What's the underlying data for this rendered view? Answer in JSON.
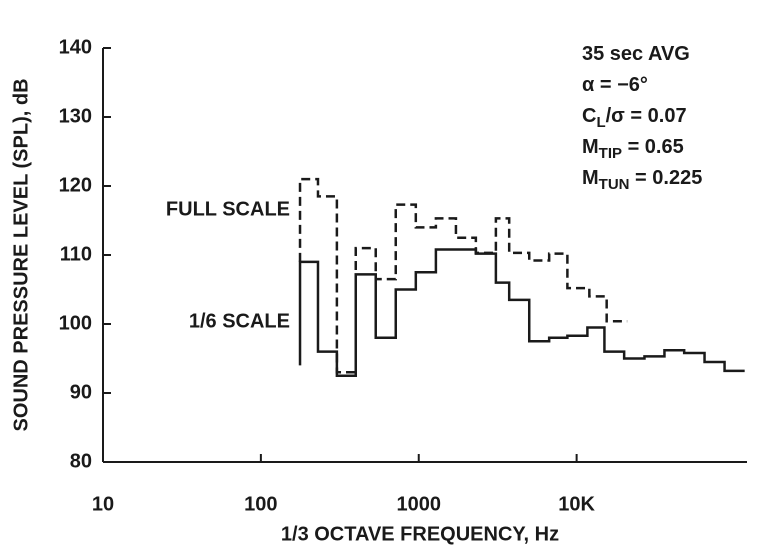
{
  "chart_data": {
    "type": "step",
    "xlabel": "1/3 OCTAVE FREQUENCY, Hz",
    "ylabel": "SOUND PRESSURE LEVEL (SPL), dB",
    "xscale": "log",
    "xlim": [
      10,
      120000
    ],
    "ylim": [
      80,
      140
    ],
    "xticks": [
      10,
      100,
      1000,
      {
        "value": 10000,
        "label": "10K"
      }
    ],
    "yticks": [
      80,
      90,
      100,
      110,
      120,
      130,
      140
    ],
    "series": [
      {
        "name": "FULL SCALE",
        "color": "#1a1a1a",
        "dash": true,
        "x": [
          177,
          177,
          230,
          303,
          399,
          534,
          715,
          958,
          1284,
          1720,
          2300,
          3080,
          3740,
          5010,
          6700,
          8740,
          12040,
          15500,
          20900
        ],
        "values": [
          109,
          121,
          118.5,
          93,
          111,
          106.5,
          117.3,
          114,
          115.3,
          112.5,
          110.3,
          115.3,
          110.3,
          109.2,
          110.2,
          105.2,
          104,
          100.4,
          100.4
        ]
      },
      {
        "name": "1/6 SCALE",
        "color": "#1a1a1a",
        "dash": false,
        "x": [
          177,
          177,
          230,
          303,
          399,
          534,
          715,
          958,
          1284,
          2300,
          3080,
          3740,
          5010,
          6700,
          8740,
          11700,
          15000,
          20000,
          26900,
          36000,
          48000,
          64600,
          86500,
          116000
        ],
        "values": [
          94,
          109,
          96,
          92.5,
          107.2,
          98,
          105,
          107.5,
          110.8,
          110.2,
          106,
          103.5,
          97.5,
          98,
          98.3,
          99.5,
          96,
          95,
          95.3,
          96.2,
          95.8,
          94.5,
          93.2,
          93.2
        ]
      }
    ],
    "annotations": [
      [
        {
          "text": "35 sec AVG"
        }
      ],
      [
        {
          "text": "α = −6°"
        }
      ],
      [
        {
          "text": "C"
        },
        {
          "text": "L",
          "sub": true
        },
        {
          "text": "/σ = 0.07"
        }
      ],
      [
        {
          "text": "M"
        },
        {
          "text": "TIP",
          "sub": true
        },
        {
          "text": " = 0.65"
        }
      ],
      [
        {
          "text": "M"
        },
        {
          "text": "TUN",
          "sub": true
        },
        {
          "text": " = 0.225"
        }
      ]
    ]
  }
}
